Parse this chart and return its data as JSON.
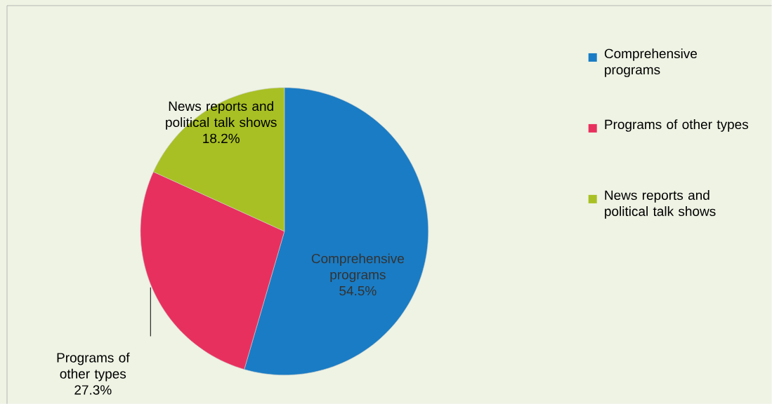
{
  "chart_data": {
    "type": "pie",
    "categories": [
      "Comprehensive programs",
      "Programs of other types",
      "News reports and political talk shows"
    ],
    "values": [
      54.5,
      27.3,
      18.2
    ],
    "value_labels": [
      "54.5%",
      "27.3%",
      "18.2%"
    ],
    "colors": [
      "#1a7cc4",
      "#e8305e",
      "#a8c023"
    ],
    "legend": "right"
  }
}
